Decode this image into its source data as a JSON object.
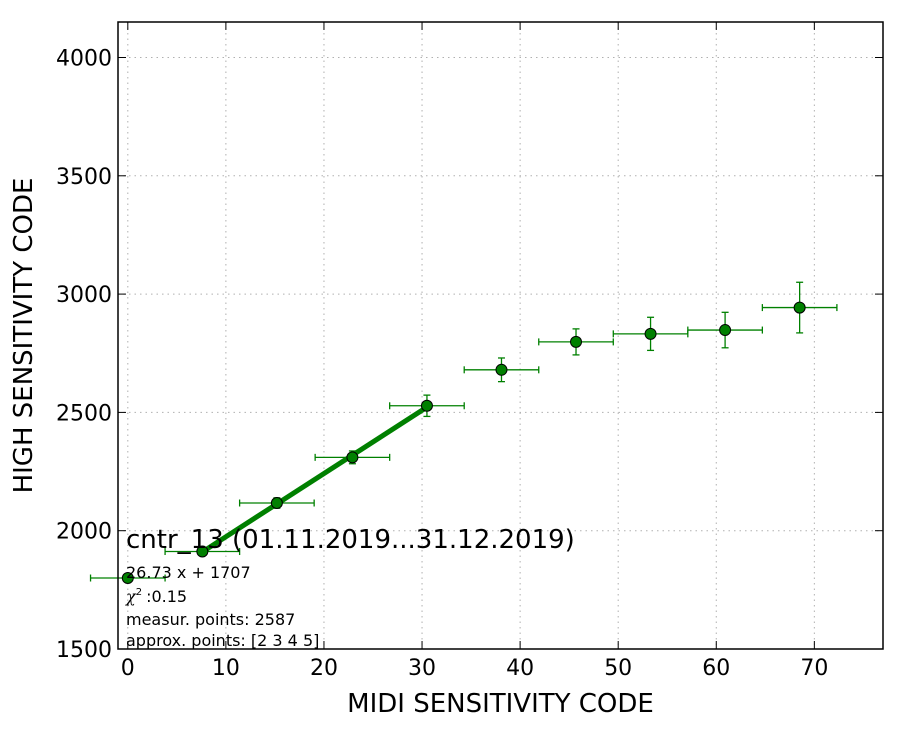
{
  "chart_data": {
    "type": "scatter",
    "xlabel": "MIDI SENSITIVITY CODE",
    "ylabel": "HIGH SENSITIVITY CODE",
    "xlim": [
      -1,
      77
    ],
    "ylim": [
      1500,
      4150
    ],
    "xticks": [
      0,
      10,
      20,
      30,
      40,
      50,
      60,
      70
    ],
    "yticks": [
      1500,
      2000,
      2500,
      3000,
      3500,
      4000
    ],
    "grid": true,
    "colors": {
      "series": "#008000",
      "marker_edge": "#000000"
    },
    "points": [
      {
        "x": 0,
        "y": 1800,
        "xerr": 3.8,
        "yerr": 0
      },
      {
        "x": 7.6,
        "y": 1912,
        "xerr": 3.8,
        "yerr": 0
      },
      {
        "x": 15.2,
        "y": 2117,
        "xerr": 3.8,
        "yerr": 22
      },
      {
        "x": 22.9,
        "y": 2310,
        "xerr": 3.8,
        "yerr": 27
      },
      {
        "x": 30.5,
        "y": 2528,
        "xerr": 3.8,
        "yerr": 45
      },
      {
        "x": 38.1,
        "y": 2680,
        "xerr": 3.8,
        "yerr": 50
      },
      {
        "x": 45.7,
        "y": 2798,
        "xerr": 3.8,
        "yerr": 55
      },
      {
        "x": 53.3,
        "y": 2832,
        "xerr": 3.8,
        "yerr": 70
      },
      {
        "x": 60.9,
        "y": 2848,
        "xerr": 3.8,
        "yerr": 75
      },
      {
        "x": 68.5,
        "y": 2943,
        "xerr": 3.8,
        "yerr": 107
      }
    ],
    "fit": {
      "slope": 26.73,
      "intercept": 1707,
      "x_range": [
        7.6,
        30.5
      ]
    },
    "annotation": {
      "title": "cntr_13 (01.11.2019...31.12.2019)",
      "equation": "26.73 x + 1707",
      "chi2": ":0.15",
      "measur_points": "measur. points: 2587",
      "approx_points": "approx. points: [2 3 4 5]"
    }
  }
}
